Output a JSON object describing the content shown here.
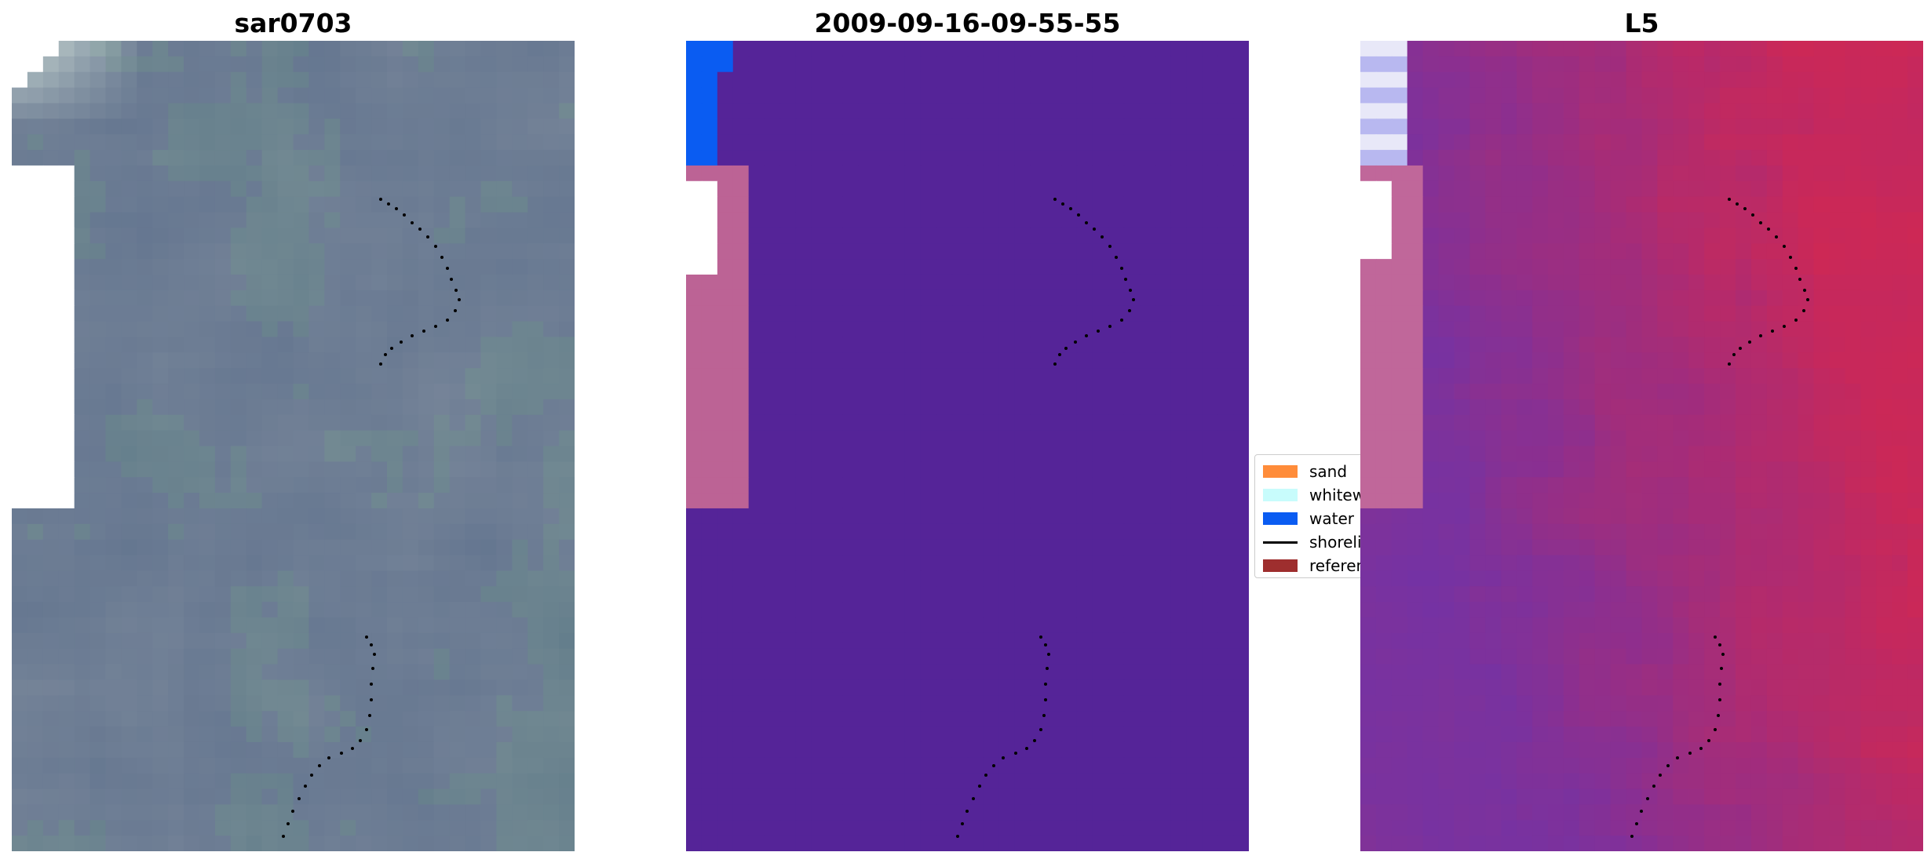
{
  "panels": [
    {
      "title": "sar0703",
      "base_color": "#687a96"
    },
    {
      "title": "2009-09-16-09-55-55",
      "base_color": "#552498"
    },
    {
      "title": "L5",
      "base_color": "#c0446e"
    }
  ],
  "legend": {
    "items": [
      {
        "label": "sand",
        "color": "#ff8c3a",
        "kind": "patch"
      },
      {
        "label": "whitewater",
        "color": "#c8fcfc",
        "kind": "patch"
      },
      {
        "label": "water",
        "color": "#0a5cf2",
        "kind": "patch"
      },
      {
        "label": "shoreline",
        "color": "#000000",
        "kind": "line"
      },
      {
        "label": "reference",
        "color": "#9e2e2e",
        "kind": "patch"
      }
    ]
  },
  "colors": {
    "class_water": "#0a5cf2",
    "class_sand_region": "#bc6395",
    "class_other": "#552498",
    "shoreline_dots": "#000000"
  }
}
